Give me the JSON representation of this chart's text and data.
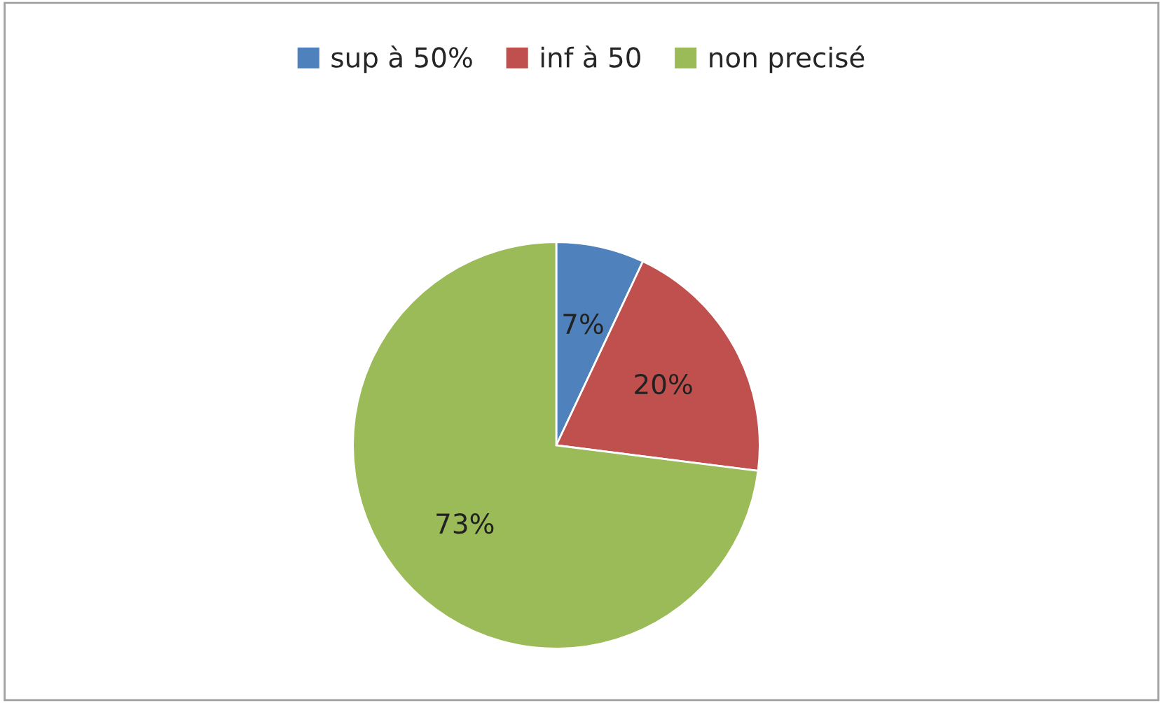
{
  "chart_data": {
    "type": "pie",
    "categories": [
      "sup à 50%",
      "inf à 50",
      "non precisé"
    ],
    "values": [
      7,
      20,
      73
    ],
    "colors": [
      "#4f81bd",
      "#c0504d",
      "#9bbb59"
    ],
    "value_labels": [
      "7%",
      "20%",
      "73%"
    ],
    "legend": "top"
  }
}
